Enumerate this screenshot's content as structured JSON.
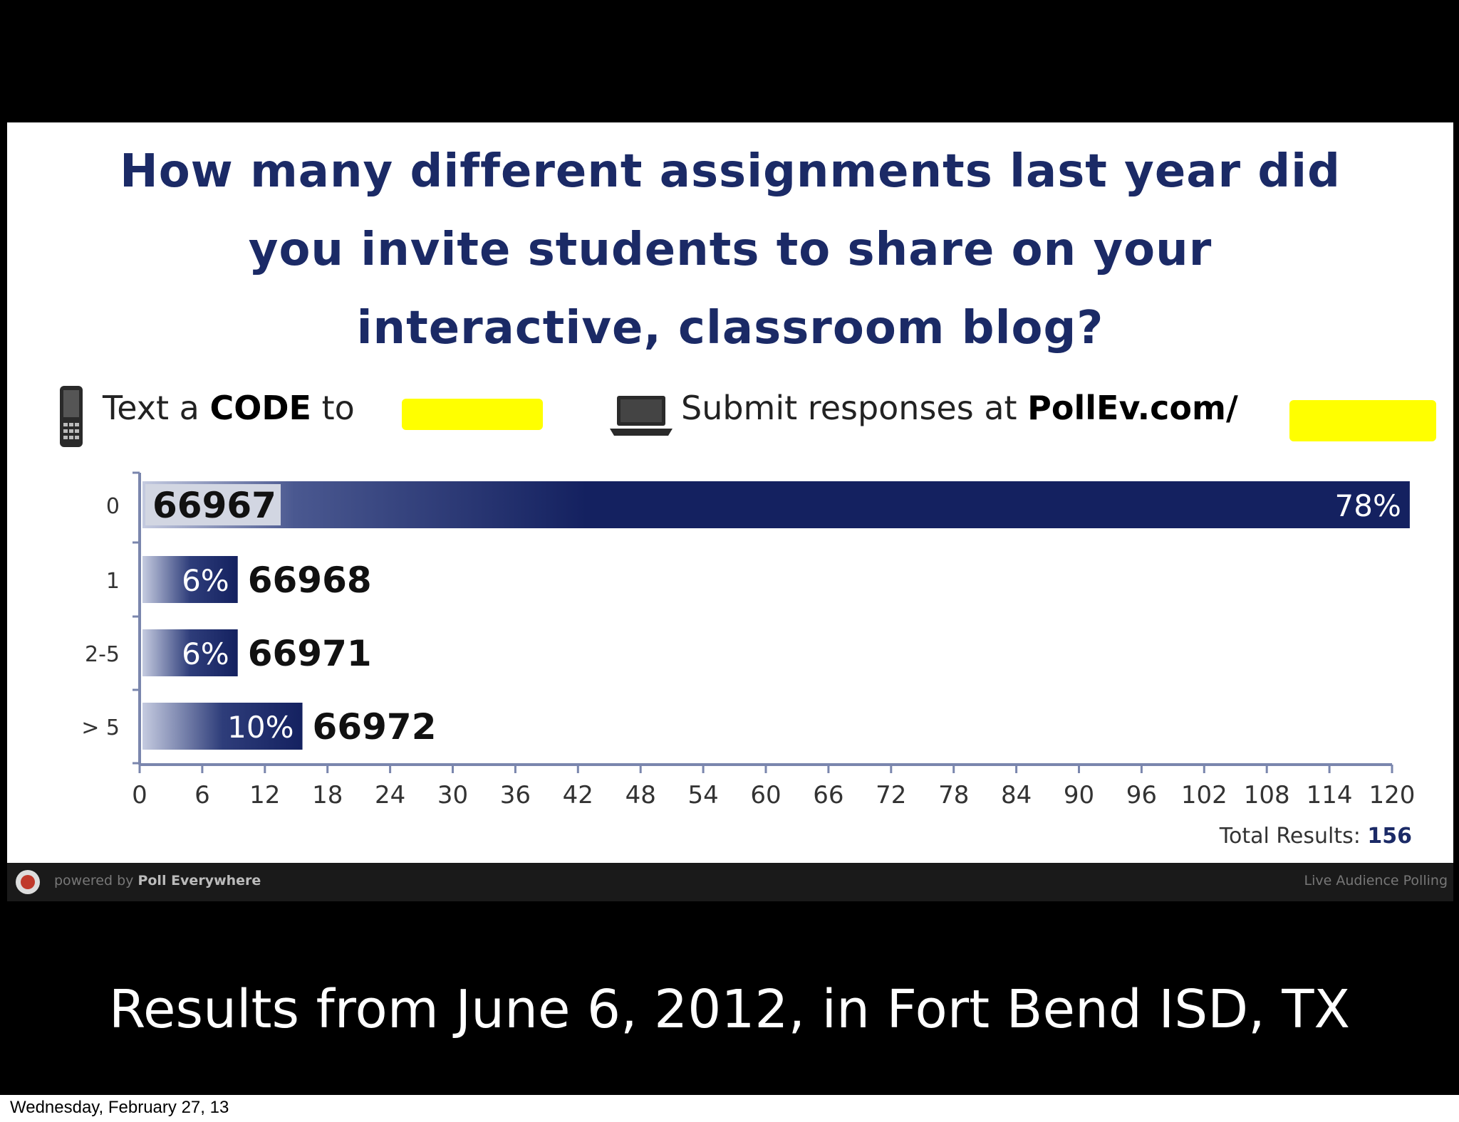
{
  "slide": {
    "question": "How many different assignments last year did you invite students to share on your interactive, classroom blog?",
    "question_lines": [
      "How many different assignments last year did",
      "you invite students to share on your",
      "interactive, classroom blog?"
    ],
    "text_code_prefix": "Text a ",
    "text_code_bold": "CODE",
    "text_code_suffix": " to",
    "submit_prefix": "Submit responses at ",
    "submit_bold": "PollEv.com/",
    "footer_powered_prefix": "powered by ",
    "footer_powered_brand": "Poll Everywhere",
    "footer_right": "Live Audience Polling",
    "caption": "Results from June 6, 2012, in Fort Bend ISD, TX",
    "date": "Wednesday, February 27, 13",
    "accent_color": "#1b2a66",
    "bar_color": "#142160",
    "highlight_color": "#ffff00",
    "icons": [
      "phone-icon",
      "laptop-icon",
      "poll-everywhere-logo-icon"
    ]
  },
  "chart_data": {
    "type": "bar",
    "orientation": "horizontal",
    "title": "How many different assignments last year did you invite students to share on your interactive, classroom blog?",
    "categories": [
      "0",
      "1",
      "2-5",
      "> 5"
    ],
    "values": [
      121.7,
      9.4,
      9.4,
      15.6
    ],
    "percent_labels": [
      "78%",
      "6%",
      "6%",
      "10%"
    ],
    "codes": [
      "66967",
      "66968",
      "66971",
      "66972"
    ],
    "xlim": [
      0,
      120
    ],
    "x_ticks": [
      0,
      6,
      12,
      18,
      24,
      30,
      36,
      42,
      48,
      54,
      60,
      66,
      72,
      78,
      84,
      90,
      96,
      102,
      108,
      114,
      120
    ],
    "total_label": "Total Results:",
    "total_value": "156",
    "grid": false,
    "legend": "none"
  }
}
